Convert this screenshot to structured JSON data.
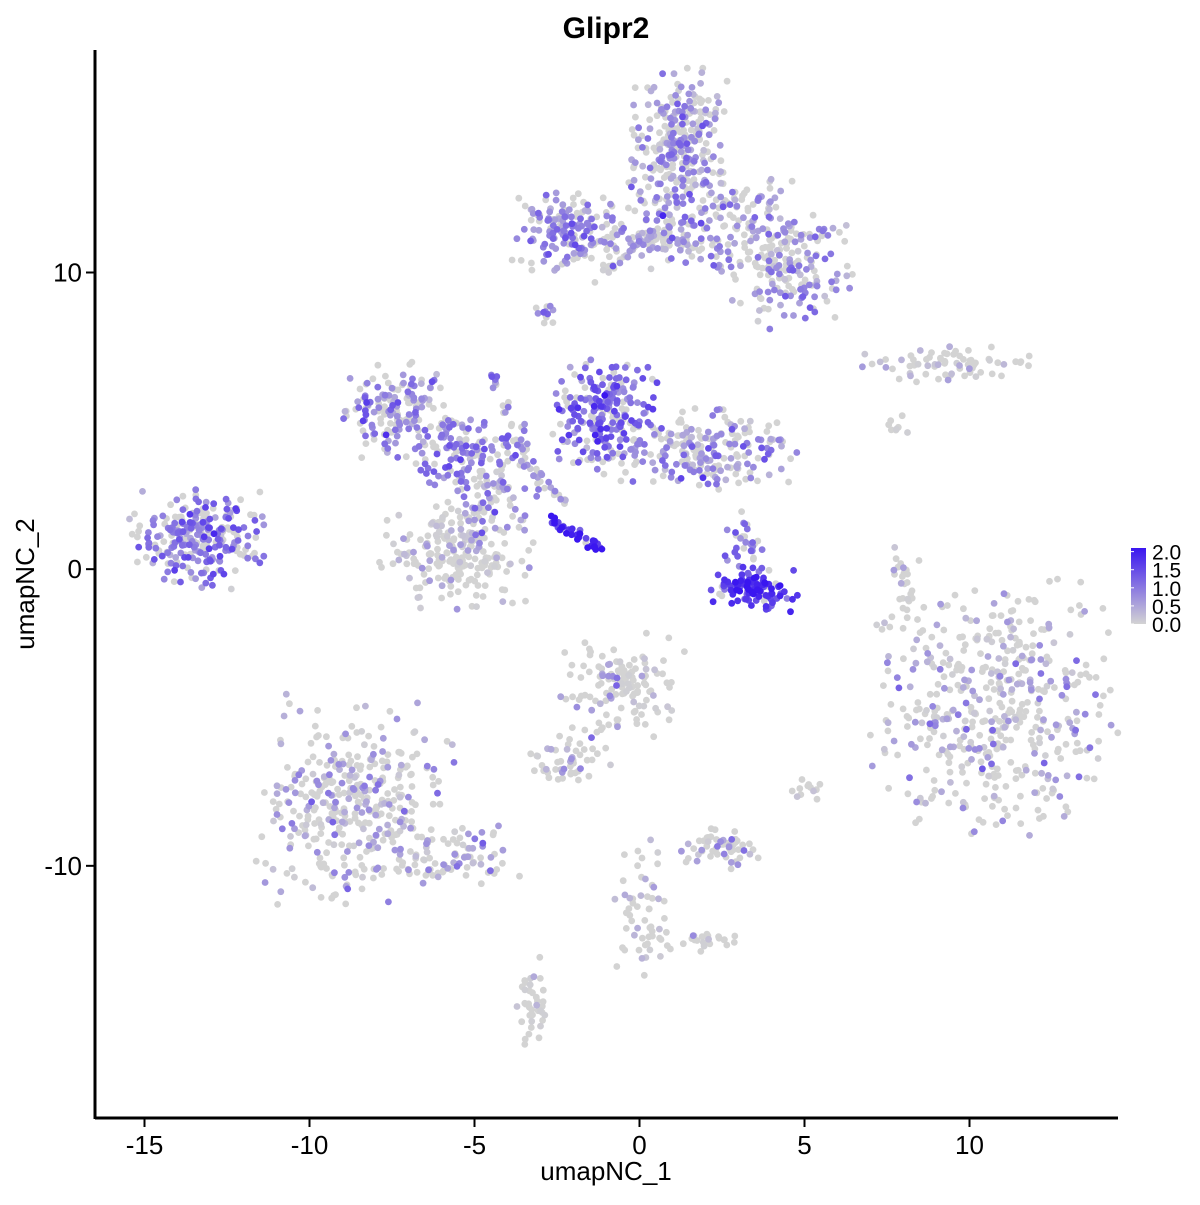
{
  "chart_data": {
    "type": "scatter",
    "title": "Glipr2",
    "xlabel": "umapNC_1",
    "ylabel": "umapNC_2",
    "xlim": [
      -16.5,
      14.5
    ],
    "ylim": [
      -18.5,
      17.5
    ],
    "x_ticks": [
      -15,
      -10,
      -5,
      0,
      5,
      10
    ],
    "x_tick_labels": [
      "-15",
      "-10",
      "-5",
      "0",
      "5",
      "10"
    ],
    "y_ticks": [
      -10,
      0,
      10
    ],
    "y_tick_labels": [
      "-10",
      "0",
      "10"
    ],
    "grid": false,
    "legend": {
      "placement": "right",
      "type": "colorbar",
      "labels": [
        "2.0",
        "1.5",
        "1.0",
        "0.5",
        "0.0"
      ],
      "range": [
        0,
        2.1
      ],
      "low_color": "#d3d3d3",
      "high_color": "#3a16f0"
    },
    "point_colors": {
      "low": "#d3d3d3",
      "high": "#3a16f0"
    },
    "clusters": [
      {
        "cx": 1.3,
        "cy": 14.5,
        "sx": 0.7,
        "sy": 1.0,
        "n": 260,
        "expr": 0.75
      },
      {
        "cx": 2.2,
        "cy": 11.8,
        "sx": 1.3,
        "sy": 0.8,
        "n": 200,
        "expr": 0.7
      },
      {
        "cx": -2.0,
        "cy": 11.4,
        "sx": 0.8,
        "sy": 0.6,
        "n": 160,
        "expr": 0.85
      },
      {
        "cx": 0.2,
        "cy": 11.1,
        "sx": 0.9,
        "sy": 0.2,
        "n": 60,
        "expr": 0.6
      },
      {
        "cx": 4.5,
        "cy": 10.2,
        "sx": 0.9,
        "sy": 0.9,
        "n": 180,
        "expr": 0.75
      },
      {
        "cx": -2.8,
        "cy": 8.6,
        "sx": 0.15,
        "sy": 0.2,
        "n": 12,
        "expr": 0.9
      },
      {
        "cx": 9.0,
        "cy": 6.9,
        "sx": 1.4,
        "sy": 0.25,
        "n": 70,
        "expr": 0.4
      },
      {
        "cx": -7.3,
        "cy": 5.3,
        "sx": 0.7,
        "sy": 0.7,
        "n": 150,
        "expr": 0.9
      },
      {
        "cx": -5.2,
        "cy": 4.0,
        "sx": 0.9,
        "sy": 0.6,
        "n": 130,
        "expr": 0.95
      },
      {
        "cx": -1.0,
        "cy": 5.3,
        "sx": 0.7,
        "sy": 0.9,
        "n": 220,
        "expr": 1.2
      },
      {
        "cx": 1.8,
        "cy": 4.0,
        "sx": 1.3,
        "sy": 0.6,
        "n": 220,
        "expr": 0.75
      },
      {
        "cx": -4.5,
        "cy": 2.5,
        "sx": 0.5,
        "sy": 0.8,
        "n": 60,
        "expr": 0.85
      },
      {
        "cx": -5.5,
        "cy": 0.5,
        "sx": 1.0,
        "sy": 0.8,
        "n": 230,
        "expr": 0.3
      },
      {
        "cx": -13.3,
        "cy": 1.0,
        "sx": 0.9,
        "sy": 0.7,
        "n": 260,
        "expr": 1.0
      },
      {
        "cx": 3.4,
        "cy": -0.6,
        "sx": 0.6,
        "sy": 0.35,
        "n": 110,
        "expr": 1.7
      },
      {
        "cx": 3.2,
        "cy": 0.8,
        "sx": 0.3,
        "sy": 0.5,
        "n": 30,
        "expr": 1.0
      },
      {
        "cx": 10.8,
        "cy": -4.7,
        "sx": 1.7,
        "sy": 1.9,
        "n": 480,
        "expr": 0.5
      },
      {
        "cx": -8.7,
        "cy": -7.8,
        "sx": 1.3,
        "sy": 1.5,
        "n": 380,
        "expr": 0.5
      },
      {
        "cx": -5.8,
        "cy": -9.6,
        "sx": 1.0,
        "sy": 0.5,
        "n": 80,
        "expr": 0.55
      },
      {
        "cx": -0.5,
        "cy": -3.9,
        "sx": 0.8,
        "sy": 0.8,
        "n": 130,
        "expr": 0.35
      },
      {
        "cx": -2.2,
        "cy": -6.5,
        "sx": 0.6,
        "sy": 0.5,
        "n": 50,
        "expr": 0.25
      },
      {
        "cx": 2.3,
        "cy": -9.4,
        "sx": 0.6,
        "sy": 0.35,
        "n": 60,
        "expr": 0.45
      },
      {
        "cx": 0.0,
        "cy": -11.5,
        "sx": 0.4,
        "sy": 1.0,
        "n": 50,
        "expr": 0.4
      },
      {
        "cx": 1.7,
        "cy": -12.5,
        "sx": 0.8,
        "sy": 0.2,
        "n": 30,
        "expr": 0.3
      },
      {
        "cx": -3.3,
        "cy": -14.7,
        "sx": 0.25,
        "sy": 0.7,
        "n": 40,
        "expr": 0.2
      },
      {
        "cx": 8.0,
        "cy": -0.3,
        "sx": 0.2,
        "sy": 0.9,
        "n": 25,
        "expr": 0.3
      },
      {
        "cx": 5.0,
        "cy": -7.4,
        "sx": 0.25,
        "sy": 0.2,
        "n": 12,
        "expr": 0.2
      },
      {
        "cx": 7.8,
        "cy": 4.8,
        "sx": 0.3,
        "sy": 0.2,
        "n": 8,
        "expr": 0.2
      }
    ],
    "streaks": [
      {
        "from": [
          -2.7,
          1.7
        ],
        "to": [
          -1.2,
          0.7
        ],
        "n": 40,
        "expr": 1.9
      },
      {
        "from": [
          -4.5,
          6.6
        ],
        "to": [
          -3.0,
          2.5
        ],
        "n": 30,
        "expr": 0.8
      },
      {
        "from": [
          -2.2,
          2.2
        ],
        "to": [
          -3.5,
          3.6
        ],
        "n": 20,
        "expr": 0.6
      },
      {
        "from": [
          -1.5,
          9.6
        ],
        "to": [
          0.0,
          11.0
        ],
        "n": 20,
        "expr": 0.5
      }
    ]
  }
}
